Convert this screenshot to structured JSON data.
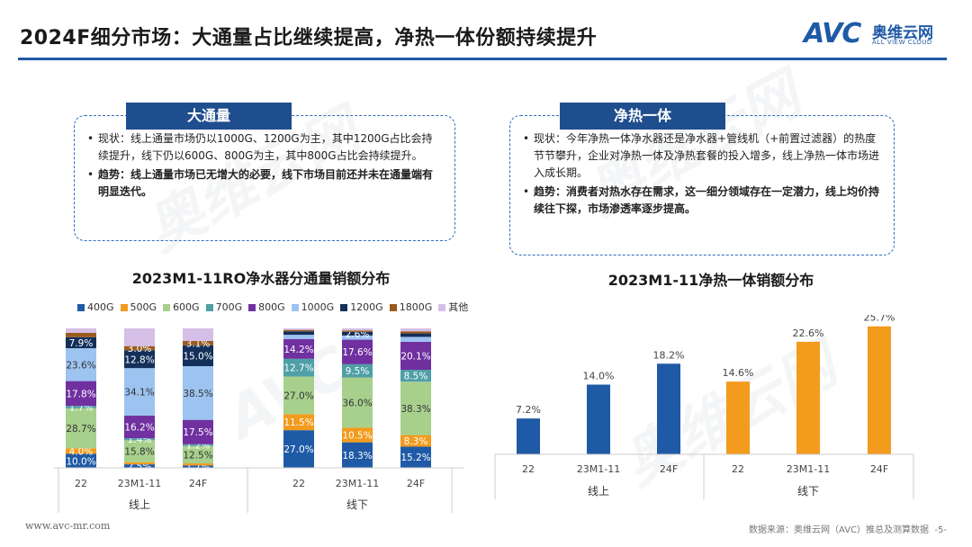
{
  "header": {
    "title": "2024F细分市场：大通量占比继续提高，净热一体份额持续提升",
    "logo_mark": "AVC",
    "logo_cn": "奥维云网",
    "logo_en": "ALL VIEW CLOUD",
    "accent_color": "#1f5aa6"
  },
  "watermark": {
    "cn": "奥维云网",
    "mark": "AVC"
  },
  "left_section": {
    "heading": "大通量",
    "status_label": "现状：",
    "status_text": "线上通量市场仍以1000G、1200G为主，其中1200G占比会持续提升，线下仍以600G、800G为主，其中800G占比会持续提升。",
    "trend_label": "趋势：",
    "trend_text": "线上通量市场已无增大的必要，线下市场目前还并未在通量端有明显迭代。"
  },
  "right_section": {
    "heading": "净热一体",
    "status_label": "现状：",
    "status_text": "今年净热一体净水器还是净水器+管线机（+前置过滤器）的热度节节攀升，企业对净热一体及净热套餐的投入增多，线上净热一体市场进入成长期。",
    "trend_label": "趋势：",
    "trend_text": "消费者对热水存在需求，这一细分领域存在一定潜力，线上均价持续往下探，市场渗透率逐步提高。"
  },
  "chart_data": [
    {
      "type": "bar",
      "stacked": true,
      "title": "2023M1-11RO净水器分通量销额分布",
      "groups": [
        "线上",
        "线下"
      ],
      "categories": [
        "22",
        "23M1-11",
        "24F"
      ],
      "legend_position": "top",
      "series": [
        {
          "name": "400G",
          "color": "#1f5aa6",
          "values": [
            [
              10.0,
              2.5,
              1.7
            ],
            [
              27.0,
              18.3,
              15.2
            ]
          ],
          "labels": [
            [
              "10.0%",
              "2.5%",
              "1.7%"
            ],
            [
              "27.0%",
              "18.3%",
              "15.2%"
            ]
          ]
        },
        {
          "name": "500G",
          "color": "#f29b1d",
          "values": [
            [
              4.0,
              1.5,
              1.5
            ],
            [
              11.5,
              10.5,
              8.3
            ]
          ],
          "labels": [
            [
              "4.0%",
              "",
              ""
            ],
            [
              "11.5%",
              "10.5%",
              "8.3%"
            ]
          ]
        },
        {
          "name": "600G",
          "color": "#a8d08d",
          "values": [
            [
              28.7,
              15.8,
              12.5
            ],
            [
              27.0,
              36.0,
              38.3
            ]
          ],
          "labels": [
            [
              "28.7%",
              "15.8%",
              "12.5%"
            ],
            [
              "27.0%",
              "36.0%",
              "38.3%"
            ]
          ]
        },
        {
          "name": "700G",
          "color": "#4f9fa6",
          "values": [
            [
              1.7,
              1.4,
              1.2
            ],
            [
              12.7,
              9.5,
              8.5
            ]
          ],
          "labels": [
            [
              "1.7%",
              "1.4%",
              "1.2%"
            ],
            [
              "12.7%",
              "9.5%",
              "8.5%"
            ]
          ]
        },
        {
          "name": "800G",
          "color": "#7030a0",
          "values": [
            [
              17.8,
              16.2,
              17.5
            ],
            [
              14.2,
              17.6,
              20.1
            ]
          ],
          "labels": [
            [
              "17.8%",
              "16.2%",
              "17.5%"
            ],
            [
              "14.2%",
              "17.6%",
              "20.1%"
            ]
          ]
        },
        {
          "name": "1000G",
          "color": "#9dc3f0",
          "values": [
            [
              23.6,
              34.1,
              38.5
            ],
            [
              3.0,
              3.0,
              3.5
            ]
          ],
          "labels": [
            [
              "23.6%",
              "34.1%",
              "38.5%"
            ],
            [
              "",
              "",
              ""
            ]
          ]
        },
        {
          "name": "1200G",
          "color": "#14305a",
          "values": [
            [
              7.9,
              12.8,
              15.0
            ],
            [
              2.5,
              2.6,
              2.5
            ]
          ],
          "labels": [
            [
              "7.9%",
              "12.8%",
              "15.0%"
            ],
            [
              "",
              "2.6%",
              ""
            ]
          ]
        },
        {
          "name": "1800G",
          "color": "#9a5b1f",
          "values": [
            [
              3.1,
              3.0,
              3.1
            ],
            [
              1.0,
              1.0,
              1.5
            ]
          ],
          "labels": [
            [
              "",
              "3.0%",
              "3.1%"
            ],
            [
              "",
              "",
              ""
            ]
          ]
        },
        {
          "name": "其他",
          "color": "#d6bfe6",
          "values": [
            [
              3.2,
              12.7,
              9.0
            ],
            [
              1.1,
              1.5,
              2.1
            ]
          ],
          "labels": [
            [
              "",
              "",
              ""
            ],
            [
              "",
              "",
              ""
            ]
          ]
        }
      ],
      "ylim": [
        0,
        100
      ]
    },
    {
      "type": "bar",
      "title": "2023M1-11净热一体销额分布",
      "groups": [
        "线上",
        "线下"
      ],
      "categories": [
        "22",
        "23M1-11",
        "24F"
      ],
      "series": [
        {
          "group": "线上",
          "color": "#1f5aa6",
          "values": [
            7.2,
            14.0,
            18.2
          ],
          "labels": [
            "7.2%",
            "14.0%",
            "18.2%"
          ]
        },
        {
          "group": "线下",
          "color": "#f29b1d",
          "values": [
            14.6,
            22.6,
            25.7
          ],
          "labels": [
            "14.6%",
            "22.6%",
            "25.7%"
          ]
        }
      ],
      "ylim": [
        0,
        28
      ]
    }
  ],
  "footer": {
    "website": "www.avc-mr.com",
    "source": "数据来源：奥维云网（AVC）推总及测算数据",
    "page": "-5-"
  }
}
